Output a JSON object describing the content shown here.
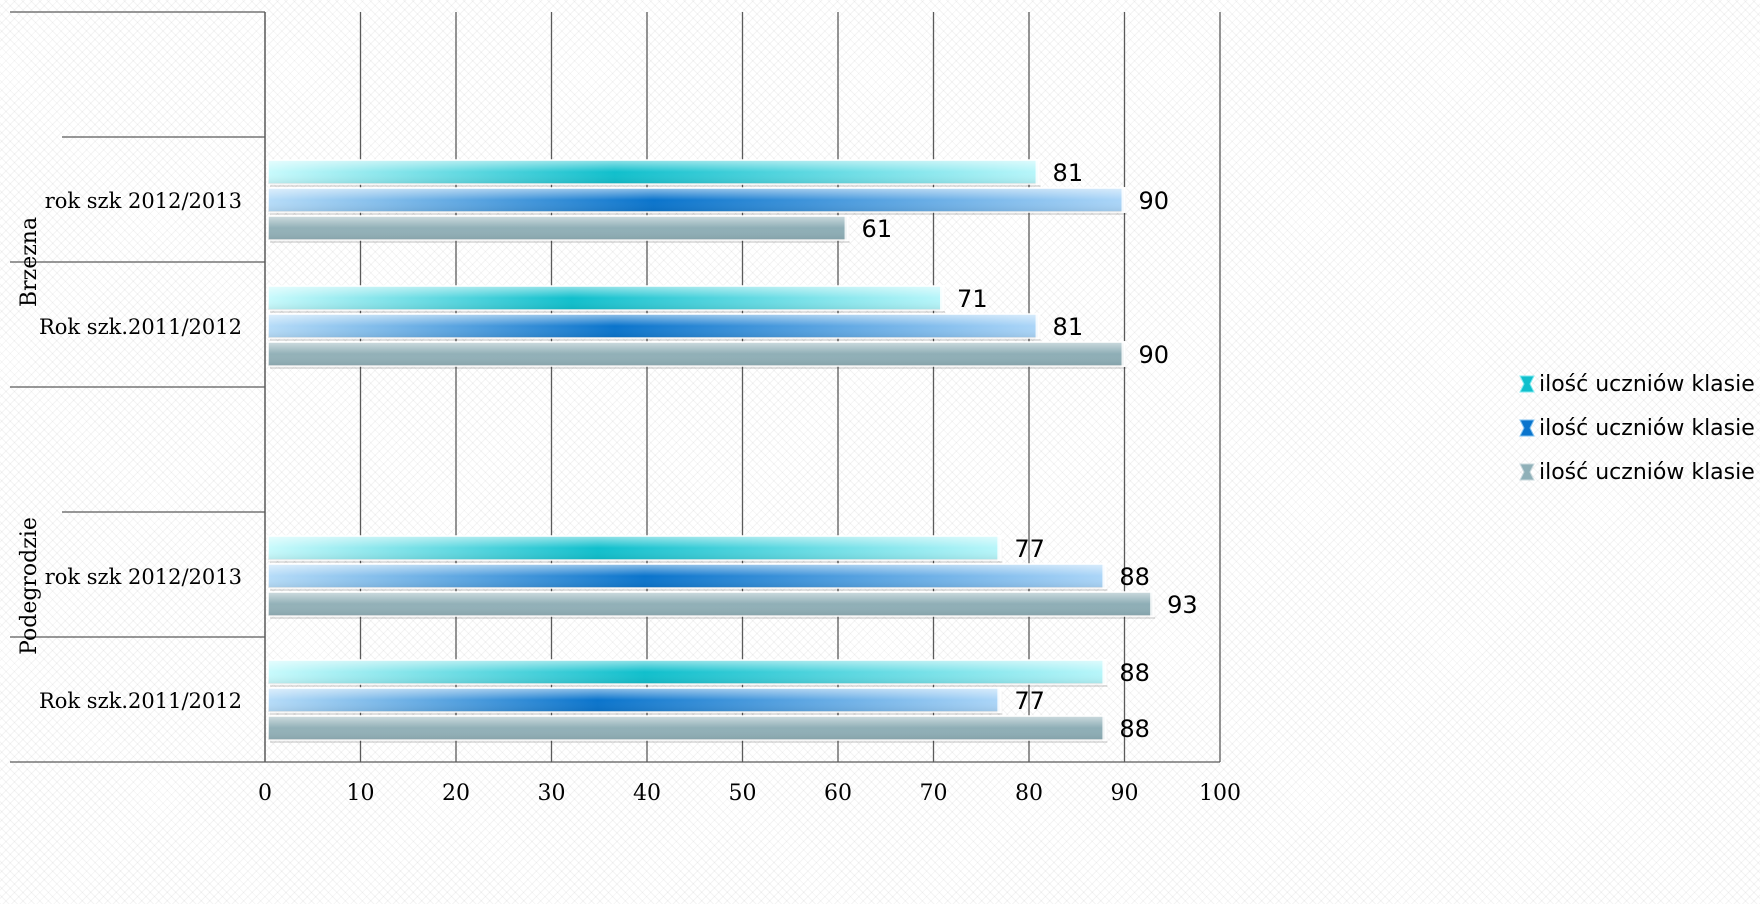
{
  "chart_data": {
    "type": "bar",
    "orientation": "horizontal",
    "xlim": [
      0,
      100
    ],
    "x_ticks": [
      "0",
      "10",
      "20",
      "30",
      "40",
      "50",
      "60",
      "70",
      "80",
      "90",
      "100"
    ],
    "groups": [
      {
        "name": "Brzezna",
        "categories": [
          "rok szk 2012/2013",
          "Rok szk.2011/2012"
        ]
      },
      {
        "name": "Podegrodzie",
        "categories": [
          "rok szk 2012/2013",
          "Rok szk.2011/2012"
        ]
      }
    ],
    "series": [
      {
        "name": "ilość uczniów klasie III",
        "color": "#22c8d4",
        "values": [
          81,
          71,
          77,
          88
        ]
      },
      {
        "name": "ilość uczniów klasie II",
        "color": "#1580d0",
        "values": [
          90,
          81,
          88,
          77
        ]
      },
      {
        "name": "ilość uczniów klasie I",
        "color": "#8fb0b8",
        "values": [
          61,
          90,
          93,
          88
        ]
      }
    ],
    "legend_position": "right",
    "grid": "vertical"
  }
}
